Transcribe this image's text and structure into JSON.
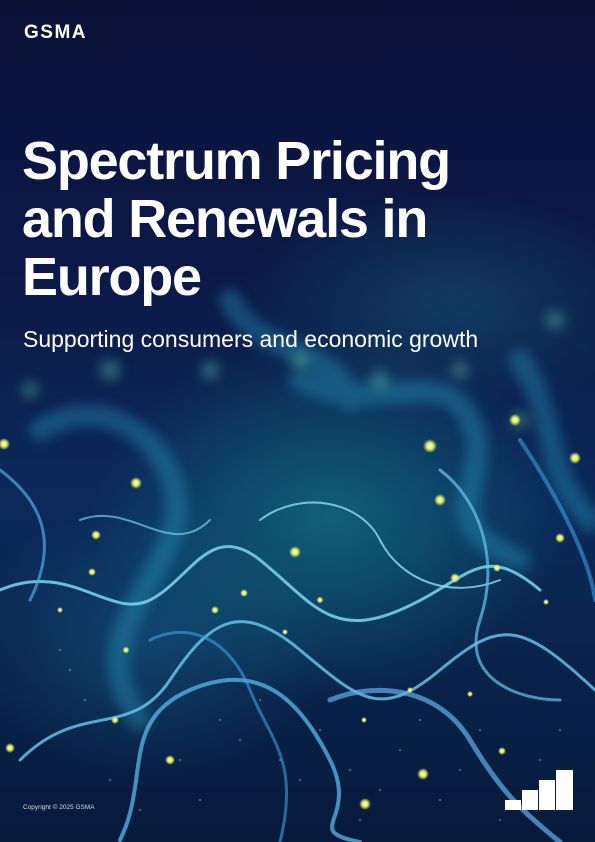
{
  "brand": {
    "logo_text": "GSMA"
  },
  "cover": {
    "title_lines": [
      "Spectrum Pricing",
      "and Renewals in",
      "Europe"
    ],
    "subtitle": "Supporting consumers and economic growth"
  },
  "footer": {
    "copyright": "Copyright © 2025 GSMA"
  },
  "icons": {
    "footer_mark": "bar-chart-icon"
  },
  "colors": {
    "background": "#0a1238",
    "text": "#ffffff",
    "glow": "#22c7c0",
    "light": "#e8f06a"
  }
}
